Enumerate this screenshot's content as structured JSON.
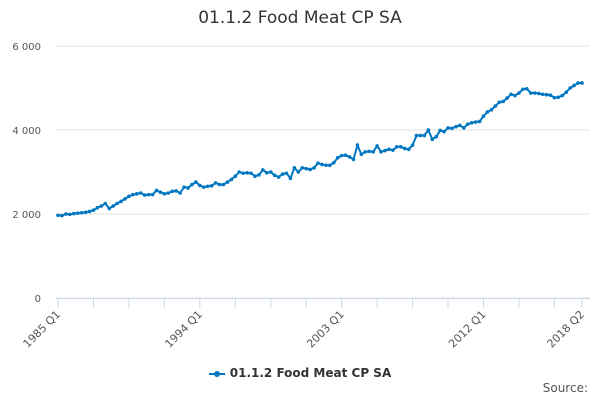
{
  "chart_data": {
    "type": "line",
    "title": "01.1.2 Food Meat CP SA",
    "xlabel": "",
    "ylabel": "",
    "start": "1985 Q1",
    "end": "2018 Q2",
    "ylim": [
      0,
      6000
    ],
    "yticks": [
      0,
      2000,
      4000,
      6000
    ],
    "ytick_labels": [
      "0",
      "2 000",
      "4 000",
      "6 000"
    ],
    "xtick_labels": [
      {
        "i": 0,
        "label": "1985 Q1"
      },
      {
        "i": 36,
        "label": "1994 Q1"
      },
      {
        "i": 72,
        "label": "2003 Q1"
      },
      {
        "i": 108,
        "label": "2012 Q1"
      },
      {
        "i": 133,
        "label": "2018 Q2"
      }
    ],
    "grid": true,
    "legend_position": "bottom",
    "series": [
      {
        "name": "01.1.2 Food Meat CP SA",
        "color": "#0077c0",
        "values": [
          1970,
          1960,
          2000,
          1990,
          2010,
          2020,
          2030,
          2040,
          2060,
          2090,
          2150,
          2190,
          2250,
          2130,
          2190,
          2250,
          2300,
          2360,
          2420,
          2460,
          2480,
          2500,
          2450,
          2460,
          2460,
          2560,
          2520,
          2480,
          2500,
          2540,
          2550,
          2500,
          2640,
          2620,
          2700,
          2760,
          2680,
          2640,
          2660,
          2670,
          2740,
          2700,
          2700,
          2760,
          2820,
          2900,
          3000,
          2970,
          2980,
          2970,
          2900,
          2930,
          3050,
          2980,
          3000,
          2920,
          2880,
          2950,
          2970,
          2850,
          3100,
          3000,
          3100,
          3080,
          3060,
          3100,
          3210,
          3180,
          3160,
          3160,
          3220,
          3340,
          3390,
          3400,
          3360,
          3300,
          3640,
          3420,
          3480,
          3490,
          3480,
          3620,
          3480,
          3510,
          3540,
          3520,
          3600,
          3600,
          3560,
          3540,
          3640,
          3870,
          3870,
          3870,
          4000,
          3780,
          3840,
          3990,
          3960,
          4050,
          4040,
          4080,
          4110,
          4050,
          4140,
          4170,
          4190,
          4200,
          4330,
          4430,
          4480,
          4570,
          4660,
          4680,
          4760,
          4850,
          4820,
          4880,
          4970,
          4980,
          4880,
          4880,
          4870,
          4850,
          4840,
          4830,
          4770,
          4780,
          4820,
          4900,
          5000,
          5060,
          5120,
          5120
        ]
      }
    ]
  },
  "source_label": "Source:"
}
